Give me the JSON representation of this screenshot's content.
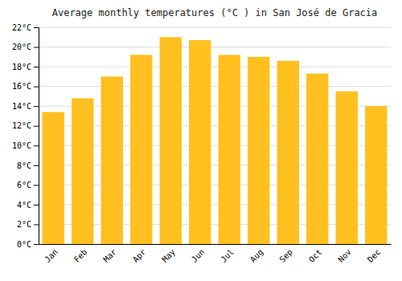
{
  "chart_data": {
    "type": "bar",
    "title": "Average monthly temperatures (°C ) in San José de Gracia",
    "categories": [
      "Jan",
      "Feb",
      "Mar",
      "Apr",
      "May",
      "Jun",
      "Jul",
      "Aug",
      "Sep",
      "Oct",
      "Nov",
      "Dec"
    ],
    "values": [
      13.4,
      14.8,
      17.0,
      19.2,
      21.0,
      20.7,
      19.2,
      19.0,
      18.6,
      17.3,
      15.5,
      14.0
    ],
    "color": "#FFC020",
    "ylim": [
      0,
      22
    ],
    "yticks": [
      {
        "value": 0,
        "label": "0°C"
      },
      {
        "value": 2,
        "label": "2°C"
      },
      {
        "value": 4,
        "label": "4°C"
      },
      {
        "value": 6,
        "label": "6°C"
      },
      {
        "value": 8,
        "label": "8°C"
      },
      {
        "value": 10,
        "label": "10°C"
      },
      {
        "value": 12,
        "label": "12°C"
      },
      {
        "value": 14,
        "label": "14°C"
      },
      {
        "value": 16,
        "label": "16°C"
      },
      {
        "value": 18,
        "label": "18°C"
      },
      {
        "value": 20,
        "label": "20°C"
      },
      {
        "value": 22,
        "label": "22°C"
      }
    ],
    "grid": true
  }
}
